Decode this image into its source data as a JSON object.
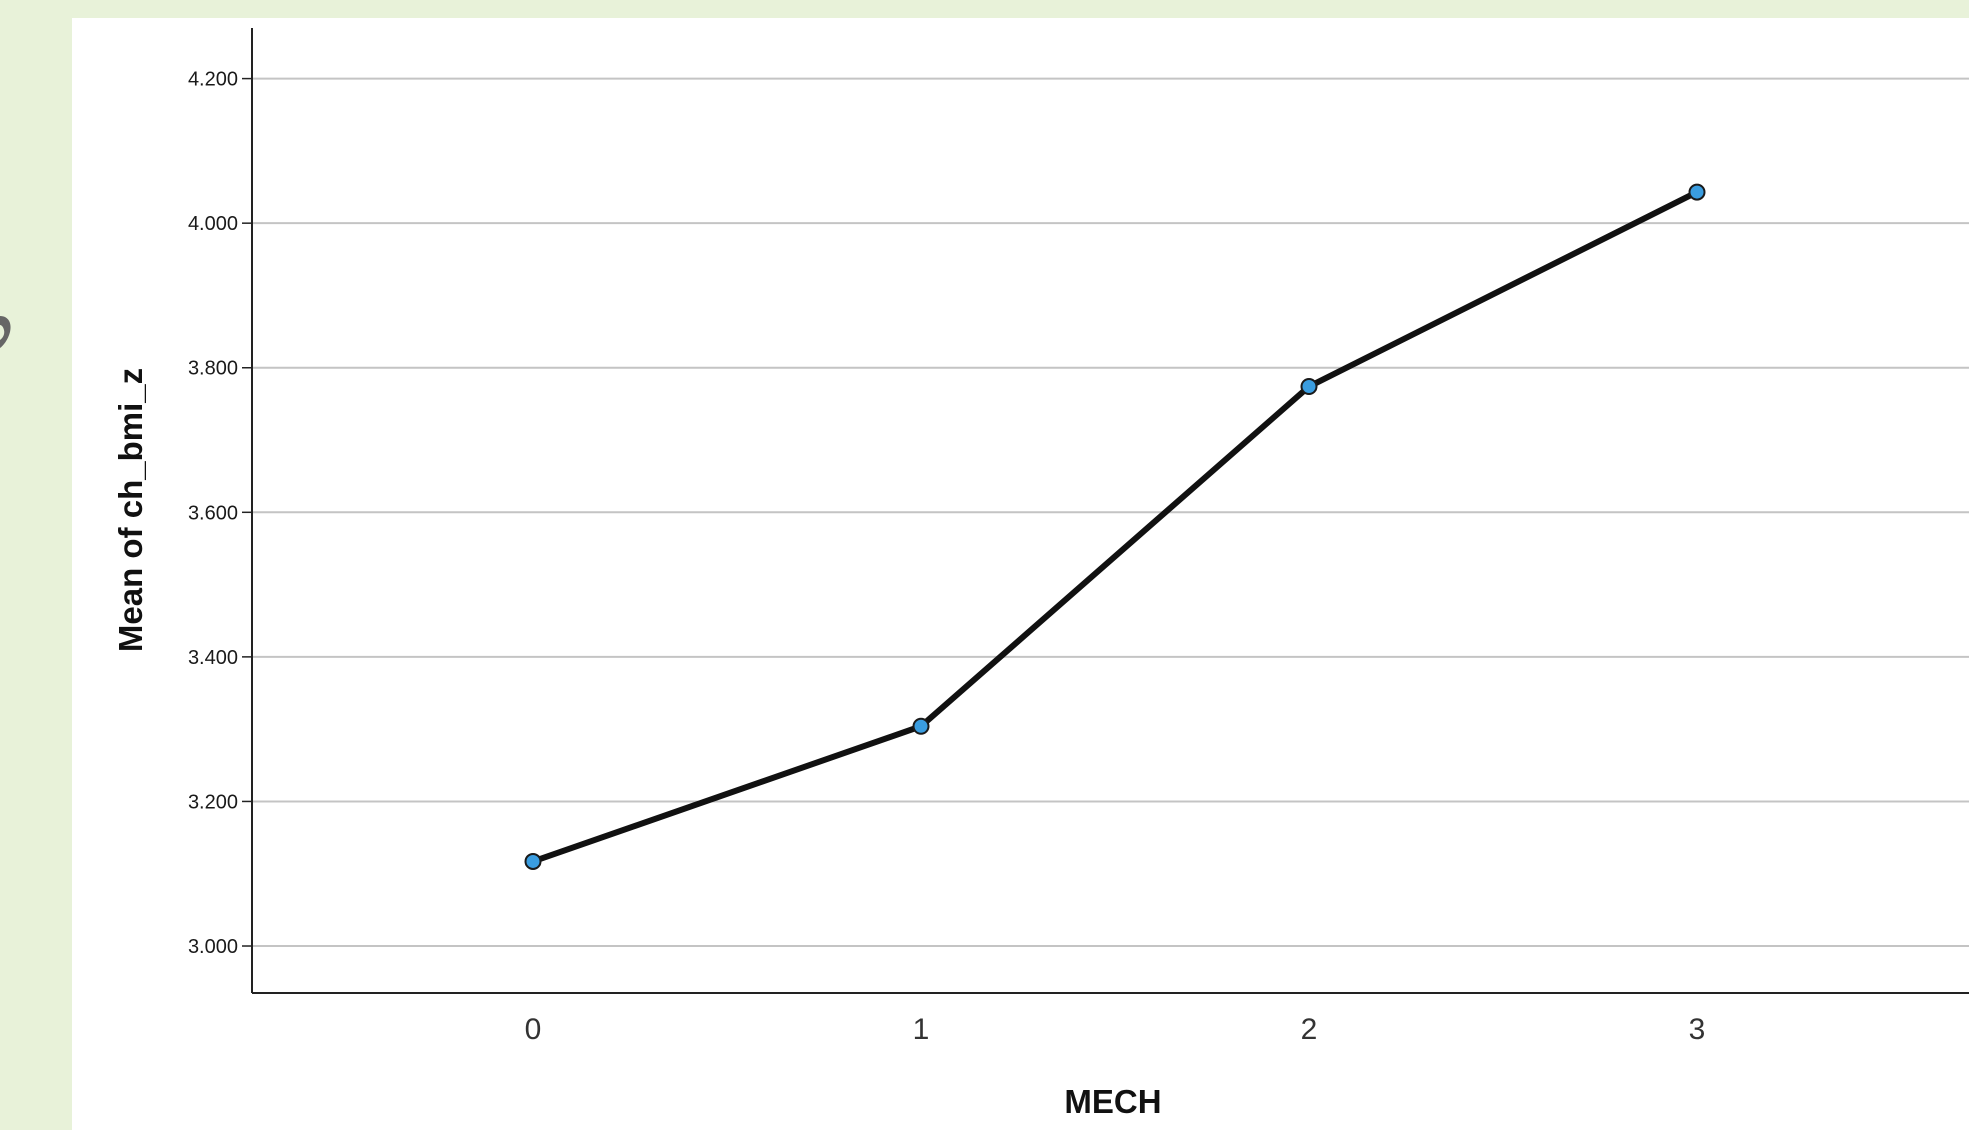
{
  "colors": {
    "page_background": "#e8f2d9",
    "panel_background": "#ffffff",
    "gridline": "#c4c4c4",
    "axis": "#222222",
    "line": "#111111",
    "marker_fill": "#3a9de0",
    "marker_stroke": "#1a1a1a"
  },
  "chart_data": {
    "type": "line",
    "x": [
      0,
      1,
      2,
      3
    ],
    "categories": [
      "0",
      "1",
      "2",
      "3"
    ],
    "series": [
      {
        "values": [
          3.117,
          3.304,
          3.774,
          4.043
        ]
      }
    ],
    "xlabel": "MECH",
    "ylabel": "Mean of ch_bmi_z",
    "ylim": [
      2.935,
      4.27
    ],
    "y_ticks": [
      3.0,
      3.2,
      3.4,
      3.6,
      3.8,
      4.0,
      4.2
    ],
    "y_tick_labels": [
      "3.000",
      "3.200",
      "3.400",
      "3.600",
      "3.800",
      "4.000",
      "4.200"
    ],
    "grid": "horizontal",
    "markers": "circle",
    "legend": "none"
  }
}
